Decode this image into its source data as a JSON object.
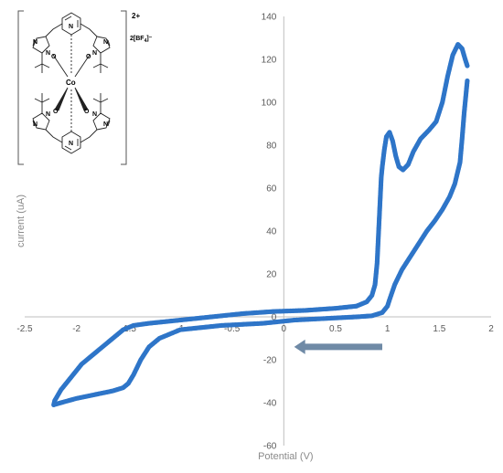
{
  "chart_data": {
    "type": "scatter",
    "title": "",
    "xlabel": "Potential (V)",
    "ylabel": "current (uA)",
    "xlim": [
      -2.5,
      2
    ],
    "ylim": [
      -60,
      140
    ],
    "x_ticks": [
      "-2.5",
      "-2",
      "-1.5",
      "-1",
      "-0.5",
      "0",
      "0.5",
      "1",
      "1.5",
      "2"
    ],
    "y_ticks": [
      "-60",
      "-40",
      "-20",
      "0",
      "20",
      "40",
      "60",
      "80",
      "100",
      "120",
      "140"
    ],
    "grid": false,
    "legend": "none",
    "series": [
      {
        "color": "#2e75c8",
        "points": [
          [
            1.77,
            110
          ],
          [
            1.74,
            95
          ],
          [
            1.72,
            83
          ],
          [
            1.7,
            72
          ],
          [
            1.65,
            62
          ],
          [
            1.6,
            56
          ],
          [
            1.53,
            50
          ],
          [
            1.46,
            45
          ],
          [
            1.38,
            40
          ],
          [
            1.3,
            34
          ],
          [
            1.22,
            28
          ],
          [
            1.14,
            22
          ],
          [
            1.07,
            15
          ],
          [
            1.02,
            8
          ],
          [
            1.0,
            5
          ],
          [
            0.95,
            2
          ],
          [
            0.85,
            0.5
          ],
          [
            0.7,
            0
          ],
          [
            0.5,
            -0.5
          ],
          [
            0.3,
            -1
          ],
          [
            0.1,
            -1.5
          ],
          [
            0.0,
            -2
          ],
          [
            -0.2,
            -3
          ],
          [
            -0.4,
            -3.5
          ],
          [
            -0.6,
            -4
          ],
          [
            -0.8,
            -5
          ],
          [
            -1.0,
            -6
          ],
          [
            -1.1,
            -8
          ],
          [
            -1.2,
            -10
          ],
          [
            -1.3,
            -14
          ],
          [
            -1.38,
            -20
          ],
          [
            -1.45,
            -27
          ],
          [
            -1.5,
            -31
          ],
          [
            -1.55,
            -33
          ],
          [
            -1.65,
            -34.5
          ],
          [
            -1.8,
            -36
          ],
          [
            -2.0,
            -38
          ],
          [
            -2.15,
            -40
          ],
          [
            -2.22,
            -41
          ],
          [
            -2.21,
            -39
          ],
          [
            -2.15,
            -34
          ],
          [
            -2.05,
            -28
          ],
          [
            -1.95,
            -22
          ],
          [
            -1.8,
            -16
          ],
          [
            -1.65,
            -10
          ],
          [
            -1.55,
            -6
          ],
          [
            -1.45,
            -4
          ],
          [
            -1.3,
            -3
          ],
          [
            -1.0,
            -1.5
          ],
          [
            -0.7,
            0
          ],
          [
            -0.4,
            1.5
          ],
          [
            -0.1,
            2.5
          ],
          [
            0.2,
            3
          ],
          [
            0.5,
            4
          ],
          [
            0.7,
            5
          ],
          [
            0.8,
            7
          ],
          [
            0.85,
            10
          ],
          [
            0.88,
            15
          ],
          [
            0.9,
            25
          ],
          [
            0.91,
            35
          ],
          [
            0.92,
            45
          ],
          [
            0.93,
            55
          ],
          [
            0.94,
            65
          ],
          [
            0.95,
            70
          ],
          [
            0.97,
            78
          ],
          [
            0.99,
            84
          ],
          [
            1.02,
            86
          ],
          [
            1.05,
            82
          ],
          [
            1.08,
            75
          ],
          [
            1.11,
            70
          ],
          [
            1.15,
            68.5
          ],
          [
            1.2,
            71
          ],
          [
            1.25,
            77
          ],
          [
            1.32,
            83
          ],
          [
            1.4,
            87
          ],
          [
            1.47,
            91
          ],
          [
            1.53,
            100
          ],
          [
            1.58,
            112
          ],
          [
            1.63,
            122
          ],
          [
            1.68,
            127
          ],
          [
            1.72,
            125
          ],
          [
            1.75,
            120
          ],
          [
            1.77,
            117
          ]
        ]
      }
    ],
    "annotations": [
      {
        "type": "arrow",
        "direction": "left",
        "from": [
          0.95,
          -14
        ],
        "to": [
          0.1,
          -14
        ],
        "color": "#6f8aa6"
      }
    ]
  },
  "inset": {
    "charge": "2+",
    "counterion_prefix": "2[BF",
    "counterion_sub": "4",
    "counterion_suffix": "]⁻",
    "metal": "Co",
    "atoms": [
      "N",
      "N",
      "N",
      "N",
      "N",
      "N",
      "N",
      "N",
      "N",
      "N",
      "O",
      "O",
      "O",
      "O"
    ]
  }
}
